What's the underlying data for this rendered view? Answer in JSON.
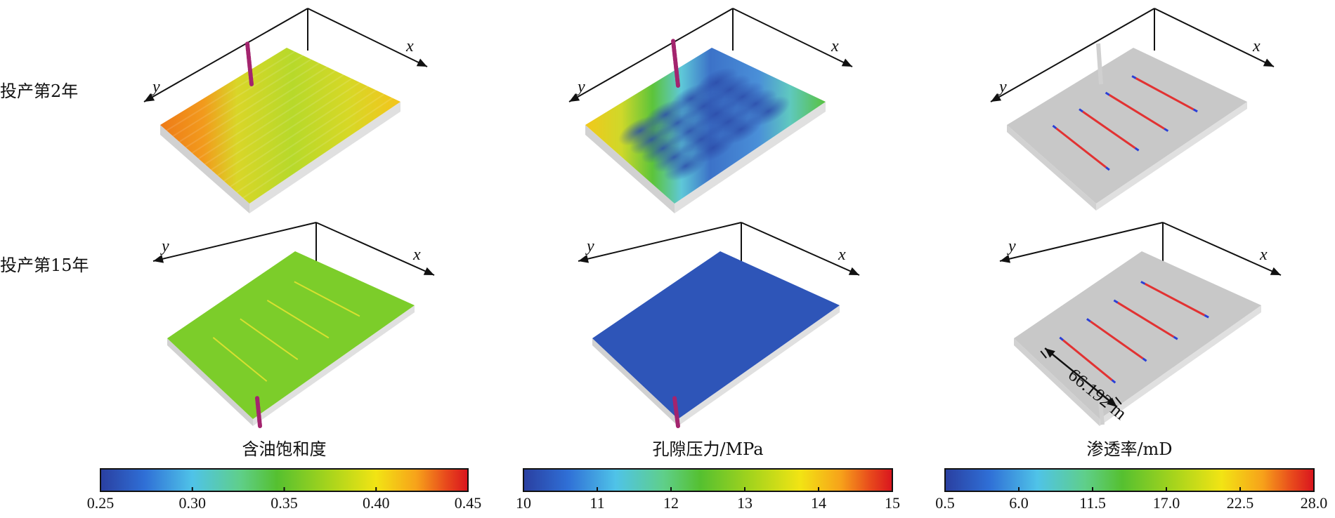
{
  "row_labels": [
    "投产第2年",
    "投产第15年"
  ],
  "axis_labels": {
    "x": "x",
    "y": "y"
  },
  "annotation": "66.192 m",
  "colorbars": [
    {
      "title": "含油饱和度",
      "ticks": [
        "0.25",
        "0.30",
        "0.35",
        "0.40",
        "0.45"
      ]
    },
    {
      "title": "孔隙压力/MPa",
      "ticks": [
        "10",
        "11",
        "12",
        "13",
        "14",
        "15"
      ]
    },
    {
      "title": "渗透率/mD",
      "ticks": [
        "0.5",
        "6.0",
        "11.5",
        "17.0",
        "22.5",
        "28.0"
      ]
    }
  ],
  "colormap": [
    "#2a3fa0",
    "#2f6fd6",
    "#4fc3e8",
    "#5fcf8a",
    "#55c030",
    "#a6d41c",
    "#f2e414",
    "#f7a21a",
    "#e84a1c",
    "#d9141e"
  ],
  "panels": [
    {
      "id": "saturation-year2",
      "field": "含油饱和度",
      "time": "投产第2年"
    },
    {
      "id": "pressure-year2",
      "field": "孔隙压力/MPa",
      "time": "投产第2年"
    },
    {
      "id": "permeability-year2",
      "field": "渗透率/mD",
      "time": "投产第2年"
    },
    {
      "id": "saturation-year15",
      "field": "含油饱和度",
      "time": "投产第15年"
    },
    {
      "id": "pressure-year15",
      "field": "孔隙压力/MPa",
      "time": "投产第15年"
    },
    {
      "id": "permeability-year15",
      "field": "渗透率/mD",
      "time": "投产第15年"
    }
  ],
  "colors": {
    "well": "#a3246e",
    "fracture_core": "#e23232",
    "fracture_tip": "#2b3fd6",
    "matrix_gray": "#c8c8c8",
    "pressure_uniform": "#2e55b8",
    "saturation_uniform": "#7ccd2a"
  }
}
